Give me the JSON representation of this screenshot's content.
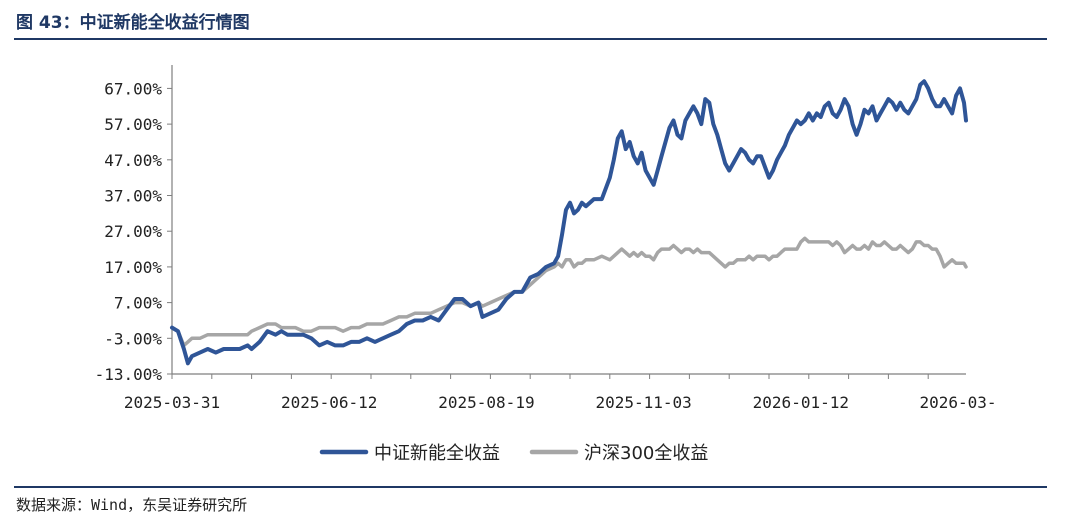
{
  "header": {
    "title": "图 43：中证新能全收益行情图"
  },
  "footer": {
    "source": "数据来源：Wind，东吴证券研究所"
  },
  "chart_data": {
    "type": "line",
    "y_ticks": [
      "67.00%",
      "57.00%",
      "47.00%",
      "37.00%",
      "27.00%",
      "17.00%",
      "7.00%",
      "-3.00%",
      "-13.00%"
    ],
    "y_tick_values": [
      67,
      57,
      47,
      37,
      27,
      17,
      7,
      -3,
      -13
    ],
    "ylim": [
      -13,
      73
    ],
    "x_ticks": [
      "2025-03-31",
      "2025-06-12",
      "2025-08-19",
      "2025-11-03",
      "2026-01-12",
      "2026-03-"
    ],
    "grid": false,
    "legend_position": "bottom",
    "series": [
      {
        "name": "中证新能全收益",
        "color": "#2f5597",
        "values": [
          [
            0,
            0
          ],
          [
            3,
            -1
          ],
          [
            6,
            -6
          ],
          [
            8,
            -10
          ],
          [
            10,
            -8
          ],
          [
            14,
            -7
          ],
          [
            18,
            -6
          ],
          [
            22,
            -7
          ],
          [
            26,
            -6
          ],
          [
            30,
            -6
          ],
          [
            34,
            -6
          ],
          [
            38,
            -5
          ],
          [
            40,
            -6
          ],
          [
            44,
            -4
          ],
          [
            48,
            -1
          ],
          [
            52,
            -2
          ],
          [
            55,
            -1
          ],
          [
            58,
            -2
          ],
          [
            62,
            -2
          ],
          [
            66,
            -2
          ],
          [
            70,
            -3
          ],
          [
            74,
            -5
          ],
          [
            78,
            -4
          ],
          [
            82,
            -5
          ],
          [
            86,
            -5
          ],
          [
            90,
            -4
          ],
          [
            94,
            -4
          ],
          [
            98,
            -3
          ],
          [
            102,
            -4
          ],
          [
            106,
            -3
          ],
          [
            110,
            -2
          ],
          [
            114,
            -1
          ],
          [
            118,
            1
          ],
          [
            122,
            2
          ],
          [
            126,
            2
          ],
          [
            130,
            3
          ],
          [
            134,
            2
          ],
          [
            138,
            5
          ],
          [
            142,
            8
          ],
          [
            146,
            8
          ],
          [
            150,
            6
          ],
          [
            154,
            7
          ],
          [
            156,
            3
          ],
          [
            160,
            4
          ],
          [
            164,
            5
          ],
          [
            168,
            8
          ],
          [
            172,
            10
          ],
          [
            176,
            10
          ],
          [
            180,
            14
          ],
          [
            184,
            15
          ],
          [
            188,
            17
          ],
          [
            192,
            18
          ],
          [
            194,
            20
          ],
          [
            196,
            26
          ],
          [
            198,
            33
          ],
          [
            200,
            35
          ],
          [
            202,
            32
          ],
          [
            204,
            33
          ],
          [
            206,
            35
          ],
          [
            208,
            34
          ],
          [
            212,
            36
          ],
          [
            216,
            36
          ],
          [
            220,
            42
          ],
          [
            222,
            47
          ],
          [
            224,
            53
          ],
          [
            226,
            55
          ],
          [
            228,
            50
          ],
          [
            230,
            52
          ],
          [
            232,
            48
          ],
          [
            234,
            46
          ],
          [
            236,
            49
          ],
          [
            238,
            44
          ],
          [
            240,
            42
          ],
          [
            242,
            40
          ],
          [
            244,
            44
          ],
          [
            246,
            48
          ],
          [
            250,
            56
          ],
          [
            252,
            58
          ],
          [
            254,
            54
          ],
          [
            256,
            53
          ],
          [
            258,
            58
          ],
          [
            260,
            60
          ],
          [
            262,
            62
          ],
          [
            264,
            60
          ],
          [
            266,
            57
          ],
          [
            268,
            64
          ],
          [
            270,
            63
          ],
          [
            272,
            57
          ],
          [
            274,
            54
          ],
          [
            276,
            50
          ],
          [
            278,
            46
          ],
          [
            280,
            44
          ],
          [
            282,
            46
          ],
          [
            284,
            48
          ],
          [
            286,
            50
          ],
          [
            288,
            49
          ],
          [
            290,
            47
          ],
          [
            292,
            46
          ],
          [
            294,
            48
          ],
          [
            296,
            48
          ],
          [
            298,
            45
          ],
          [
            300,
            42
          ],
          [
            302,
            44
          ],
          [
            304,
            47
          ],
          [
            306,
            49
          ],
          [
            308,
            51
          ],
          [
            310,
            54
          ],
          [
            312,
            56
          ],
          [
            314,
            58
          ],
          [
            316,
            57
          ],
          [
            318,
            58
          ],
          [
            320,
            60
          ],
          [
            322,
            58
          ],
          [
            324,
            60
          ],
          [
            326,
            59
          ],
          [
            328,
            62
          ],
          [
            330,
            63
          ],
          [
            332,
            60
          ],
          [
            334,
            59
          ],
          [
            336,
            61
          ],
          [
            338,
            64
          ],
          [
            340,
            62
          ],
          [
            342,
            57
          ],
          [
            344,
            54
          ],
          [
            346,
            57
          ],
          [
            348,
            61
          ],
          [
            350,
            60
          ],
          [
            352,
            62
          ],
          [
            354,
            58
          ],
          [
            356,
            60
          ],
          [
            358,
            62
          ],
          [
            360,
            64
          ],
          [
            362,
            63
          ],
          [
            364,
            61
          ],
          [
            366,
            63
          ],
          [
            368,
            61
          ],
          [
            370,
            60
          ],
          [
            372,
            62
          ],
          [
            374,
            64
          ],
          [
            376,
            68
          ],
          [
            378,
            69
          ],
          [
            380,
            67
          ],
          [
            382,
            64
          ],
          [
            384,
            62
          ],
          [
            386,
            62
          ],
          [
            388,
            64
          ],
          [
            390,
            62
          ],
          [
            392,
            60
          ],
          [
            394,
            65
          ],
          [
            396,
            67
          ],
          [
            398,
            63
          ],
          [
            399,
            58
          ]
        ]
      },
      {
        "name": "沪深300全收益",
        "color": "#a6a6a6",
        "values": [
          [
            0,
            0
          ],
          [
            3,
            -1
          ],
          [
            6,
            -5
          ],
          [
            8,
            -4
          ],
          [
            10,
            -3
          ],
          [
            14,
            -3
          ],
          [
            18,
            -2
          ],
          [
            22,
            -2
          ],
          [
            26,
            -2
          ],
          [
            30,
            -2
          ],
          [
            34,
            -2
          ],
          [
            38,
            -2
          ],
          [
            40,
            -1
          ],
          [
            44,
            0
          ],
          [
            48,
            1
          ],
          [
            52,
            1
          ],
          [
            55,
            0
          ],
          [
            58,
            0
          ],
          [
            62,
            0
          ],
          [
            66,
            -1
          ],
          [
            70,
            -1
          ],
          [
            74,
            0
          ],
          [
            78,
            0
          ],
          [
            82,
            0
          ],
          [
            86,
            -1
          ],
          [
            90,
            0
          ],
          [
            94,
            0
          ],
          [
            98,
            1
          ],
          [
            102,
            1
          ],
          [
            106,
            1
          ],
          [
            110,
            2
          ],
          [
            114,
            3
          ],
          [
            118,
            3
          ],
          [
            122,
            4
          ],
          [
            126,
            4
          ],
          [
            130,
            4
          ],
          [
            134,
            5
          ],
          [
            138,
            6
          ],
          [
            142,
            7
          ],
          [
            146,
            7
          ],
          [
            150,
            6
          ],
          [
            154,
            7
          ],
          [
            156,
            6
          ],
          [
            160,
            7
          ],
          [
            164,
            8
          ],
          [
            168,
            9
          ],
          [
            172,
            10
          ],
          [
            176,
            10
          ],
          [
            180,
            12
          ],
          [
            184,
            14
          ],
          [
            188,
            16
          ],
          [
            192,
            17
          ],
          [
            194,
            18
          ],
          [
            196,
            17
          ],
          [
            198,
            19
          ],
          [
            200,
            19
          ],
          [
            202,
            17
          ],
          [
            204,
            18
          ],
          [
            206,
            18
          ],
          [
            208,
            19
          ],
          [
            212,
            19
          ],
          [
            216,
            20
          ],
          [
            220,
            19
          ],
          [
            222,
            20
          ],
          [
            224,
            21
          ],
          [
            226,
            22
          ],
          [
            228,
            21
          ],
          [
            230,
            20
          ],
          [
            232,
            21
          ],
          [
            234,
            20
          ],
          [
            236,
            21
          ],
          [
            238,
            20
          ],
          [
            240,
            20
          ],
          [
            242,
            19
          ],
          [
            244,
            21
          ],
          [
            246,
            22
          ],
          [
            250,
            22
          ],
          [
            252,
            23
          ],
          [
            254,
            22
          ],
          [
            256,
            21
          ],
          [
            258,
            22
          ],
          [
            260,
            22
          ],
          [
            262,
            21
          ],
          [
            264,
            22
          ],
          [
            266,
            21
          ],
          [
            268,
            21
          ],
          [
            270,
            21
          ],
          [
            272,
            20
          ],
          [
            274,
            19
          ],
          [
            276,
            18
          ],
          [
            278,
            17
          ],
          [
            280,
            18
          ],
          [
            282,
            18
          ],
          [
            284,
            19
          ],
          [
            286,
            19
          ],
          [
            288,
            19
          ],
          [
            290,
            20
          ],
          [
            292,
            19
          ],
          [
            294,
            20
          ],
          [
            296,
            20
          ],
          [
            298,
            20
          ],
          [
            300,
            19
          ],
          [
            302,
            20
          ],
          [
            304,
            20
          ],
          [
            306,
            21
          ],
          [
            308,
            22
          ],
          [
            310,
            22
          ],
          [
            312,
            22
          ],
          [
            314,
            22
          ],
          [
            316,
            24
          ],
          [
            318,
            25
          ],
          [
            320,
            24
          ],
          [
            322,
            24
          ],
          [
            324,
            24
          ],
          [
            326,
            24
          ],
          [
            328,
            24
          ],
          [
            330,
            24
          ],
          [
            332,
            23
          ],
          [
            334,
            24
          ],
          [
            336,
            23
          ],
          [
            338,
            21
          ],
          [
            340,
            22
          ],
          [
            342,
            23
          ],
          [
            344,
            22
          ],
          [
            346,
            22
          ],
          [
            348,
            23
          ],
          [
            350,
            22
          ],
          [
            352,
            24
          ],
          [
            354,
            23
          ],
          [
            356,
            23
          ],
          [
            358,
            24
          ],
          [
            360,
            23
          ],
          [
            362,
            22
          ],
          [
            364,
            22
          ],
          [
            366,
            23
          ],
          [
            368,
            22
          ],
          [
            370,
            21
          ],
          [
            372,
            22
          ],
          [
            374,
            24
          ],
          [
            376,
            24
          ],
          [
            378,
            23
          ],
          [
            380,
            23
          ],
          [
            382,
            22
          ],
          [
            384,
            22
          ],
          [
            386,
            20
          ],
          [
            388,
            17
          ],
          [
            390,
            18
          ],
          [
            392,
            19
          ],
          [
            394,
            18
          ],
          [
            396,
            18
          ],
          [
            398,
            18
          ],
          [
            399,
            17
          ]
        ]
      }
    ]
  }
}
